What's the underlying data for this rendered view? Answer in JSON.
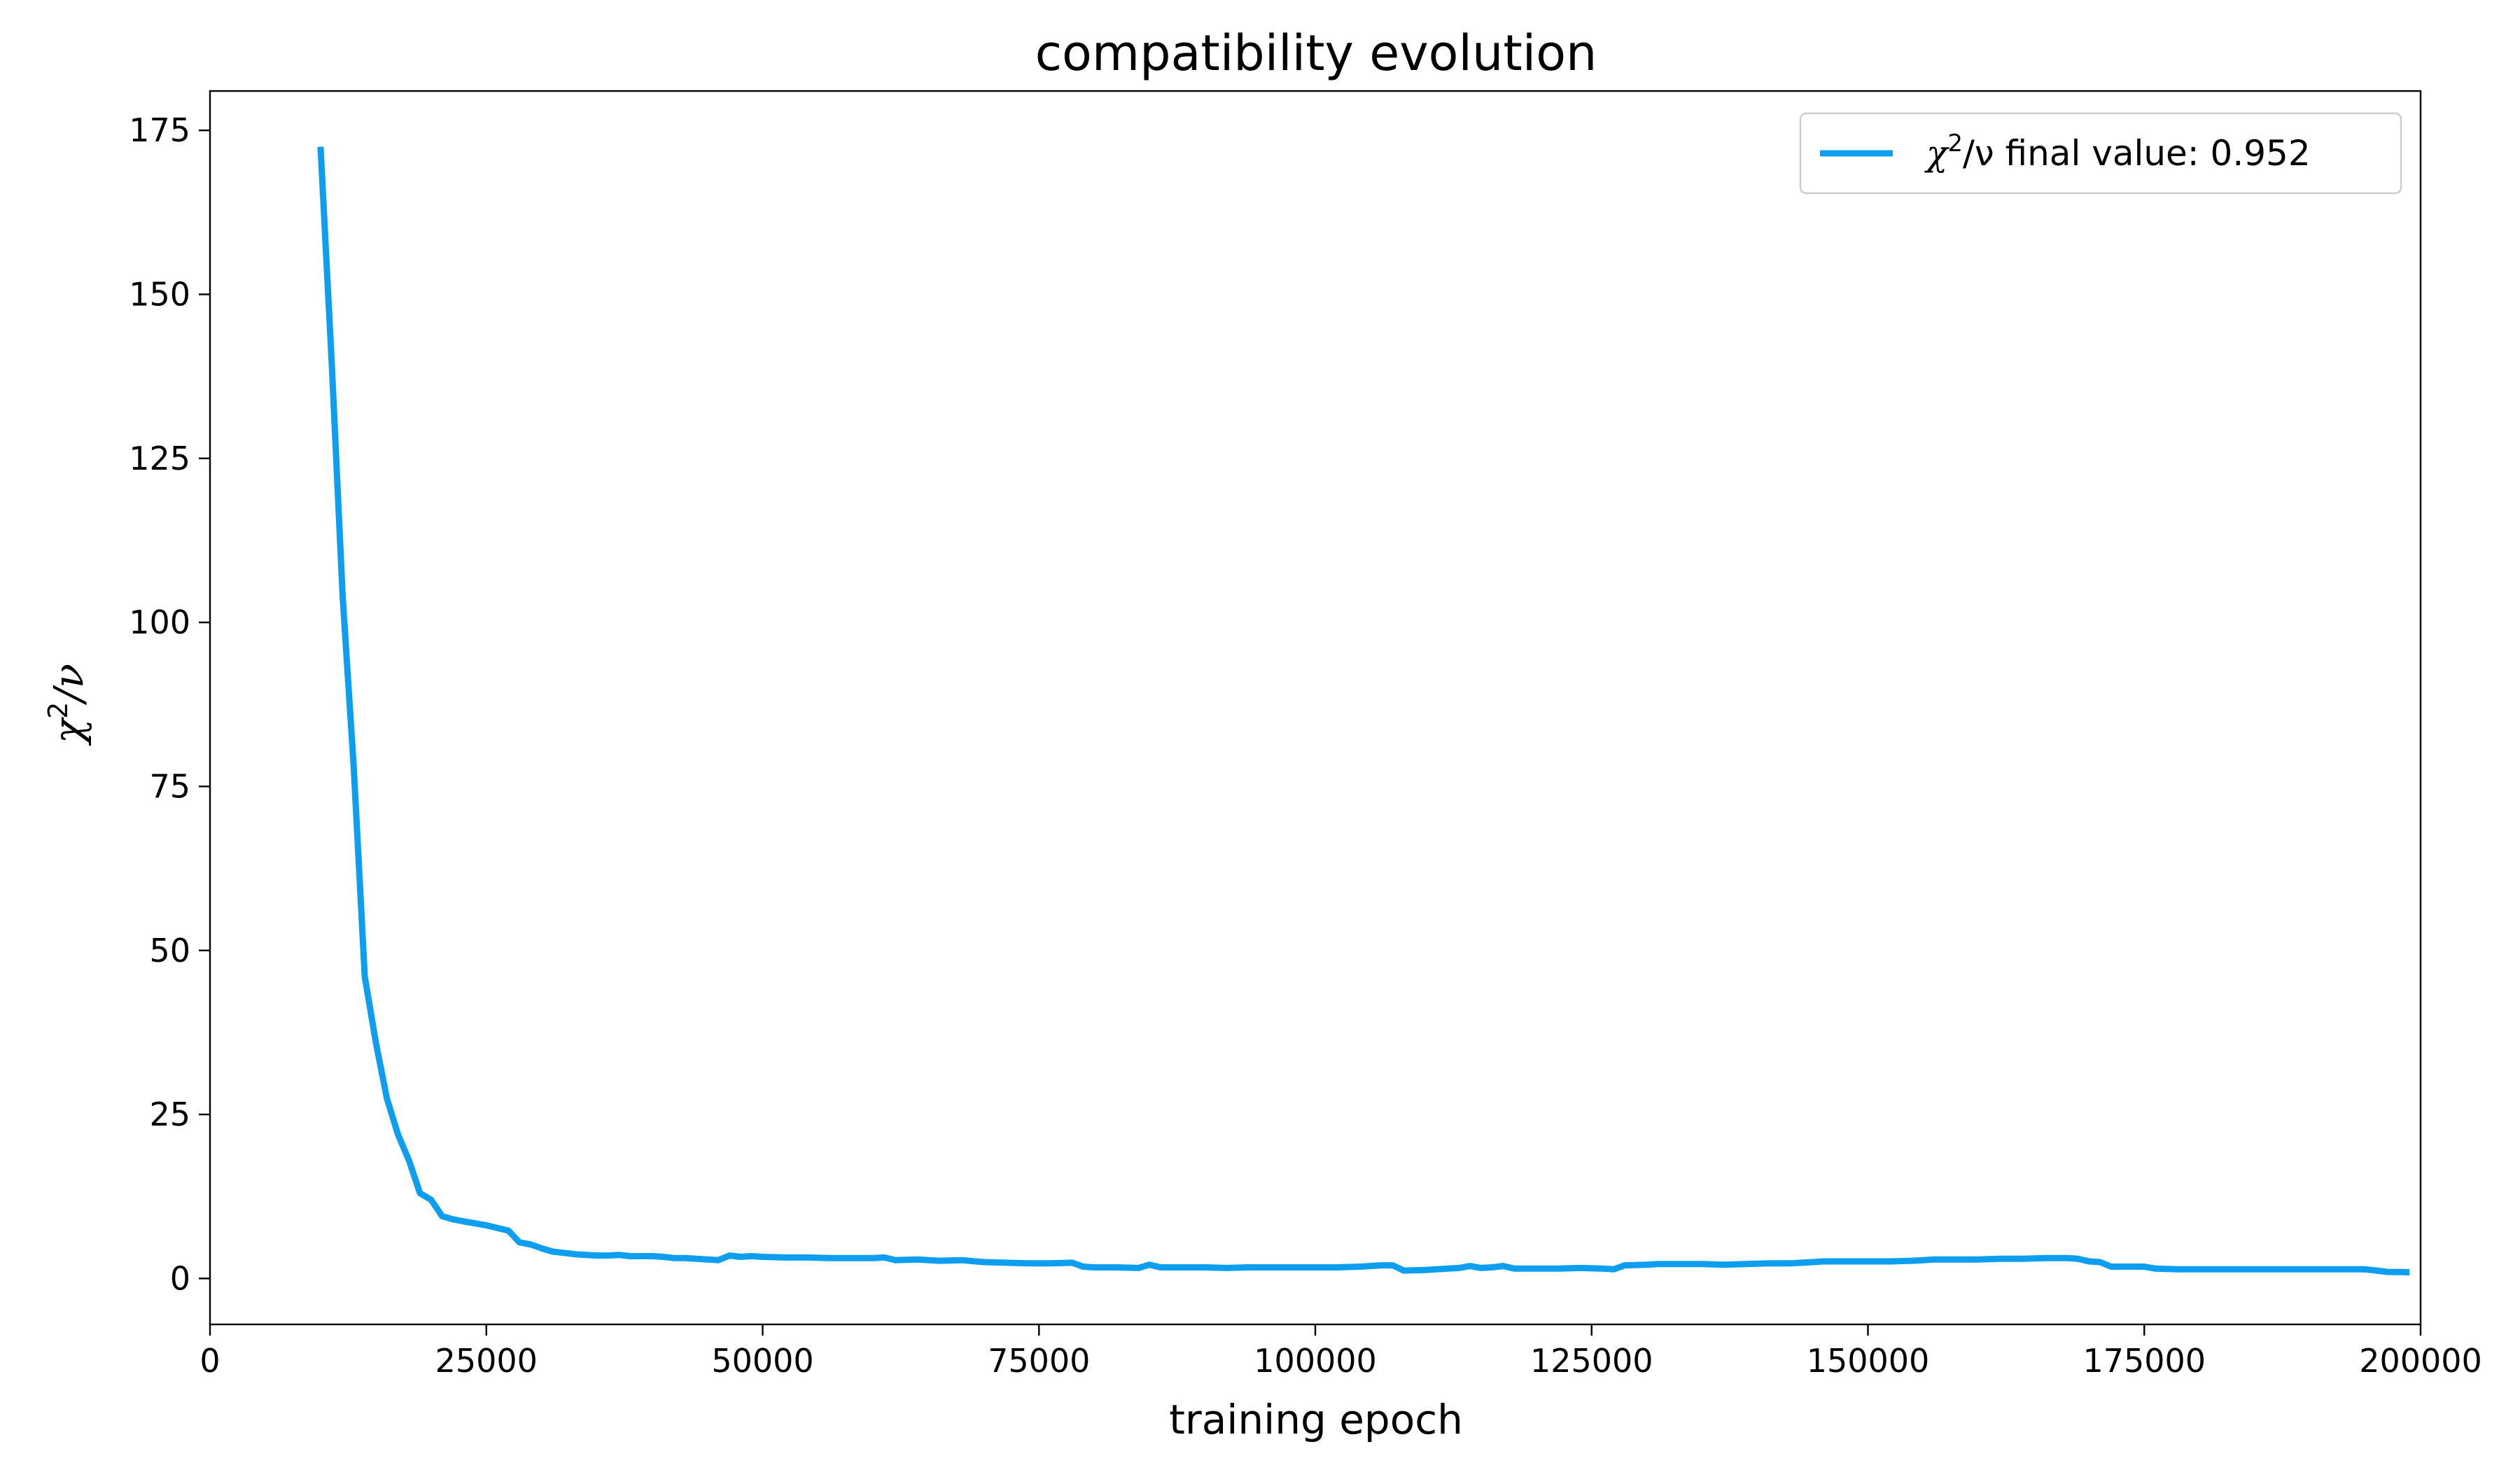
{
  "chart_data": {
    "type": "line",
    "title": "compatibility evolution",
    "xlabel": "training epoch",
    "ylabel": {
      "base": "χ",
      "sup": "2",
      "rest": "/ν"
    },
    "xlim": [
      0,
      200000
    ],
    "ylim": [
      -7,
      181
    ],
    "xticks": [
      0,
      25000,
      50000,
      75000,
      100000,
      125000,
      150000,
      175000,
      200000
    ],
    "yticks": [
      0,
      25,
      50,
      75,
      100,
      125,
      150,
      175
    ],
    "grid": false,
    "legend": {
      "location": "upper right",
      "entries": [
        {
          "base": "χ",
          "sup": "2",
          "rest": "/ν final value: 0.952"
        }
      ]
    },
    "series": [
      {
        "color": "#0d9ef0",
        "x": [
          10000,
          11000,
          12000,
          13000,
          14000,
          15000,
          16000,
          17000,
          18000,
          19000,
          20000,
          21000,
          22000,
          23000,
          24000,
          25000,
          26000,
          27000,
          28000,
          29000,
          30000,
          31000,
          32000,
          33000,
          34000,
          35000,
          36000,
          37000,
          38000,
          39000,
          40000,
          41000,
          42000,
          43000,
          44000,
          45000,
          46000,
          47000,
          48000,
          49000,
          50000,
          52000,
          54000,
          56000,
          58000,
          60000,
          61000,
          62000,
          64000,
          66000,
          68000,
          70000,
          72000,
          74000,
          76000,
          78000,
          79000,
          80000,
          82000,
          84000,
          85000,
          86000,
          88000,
          90000,
          92000,
          94000,
          96000,
          98000,
          100000,
          102000,
          104000,
          106000,
          107000,
          108000,
          110000,
          112000,
          113000,
          114000,
          115000,
          116000,
          117000,
          118000,
          120000,
          122000,
          124000,
          126000,
          127000,
          128000,
          130000,
          131000,
          133000,
          135000,
          137000,
          139000,
          141000,
          143000,
          145000,
          146000,
          148000,
          150000,
          152000,
          154000,
          155000,
          156000,
          158000,
          160000,
          162000,
          164000,
          166000,
          168000,
          169000,
          170000,
          171000,
          172000,
          174000,
          175000,
          176000,
          178000,
          180000,
          185000,
          190000,
          195000,
          196000,
          197000,
          199000
        ],
        "values": [
          172.5,
          140,
          104,
          78,
          46,
          36,
          27.5,
          22,
          18,
          13,
          12,
          9.5,
          9,
          8.7,
          8.4,
          8.1,
          7.7,
          7.3,
          5.5,
          5.2,
          4.6,
          4.1,
          3.9,
          3.7,
          3.6,
          3.5,
          3.5,
          3.6,
          3.4,
          3.4,
          3.4,
          3.3,
          3.1,
          3.1,
          3.0,
          2.9,
          2.8,
          3.5,
          3.3,
          3.4,
          3.3,
          3.2,
          3.2,
          3.1,
          3.1,
          3.1,
          3.2,
          2.8,
          2.9,
          2.7,
          2.8,
          2.5,
          2.4,
          2.3,
          2.3,
          2.4,
          1.8,
          1.7,
          1.7,
          1.6,
          2.1,
          1.7,
          1.7,
          1.7,
          1.6,
          1.7,
          1.7,
          1.7,
          1.7,
          1.7,
          1.8,
          2.0,
          2.0,
          1.2,
          1.3,
          1.5,
          1.6,
          1.9,
          1.6,
          1.7,
          1.9,
          1.5,
          1.5,
          1.5,
          1.6,
          1.5,
          1.4,
          2.0,
          2.1,
          2.2,
          2.2,
          2.2,
          2.1,
          2.2,
          2.3,
          2.3,
          2.5,
          2.6,
          2.6,
          2.6,
          2.6,
          2.7,
          2.8,
          2.9,
          2.9,
          2.9,
          3.0,
          3.0,
          3.1,
          3.1,
          3.0,
          2.6,
          2.5,
          1.8,
          1.8,
          1.8,
          1.5,
          1.4,
          1.4,
          1.4,
          1.4,
          1.4,
          1.2,
          1.0,
          0.952
        ]
      }
    ]
  }
}
